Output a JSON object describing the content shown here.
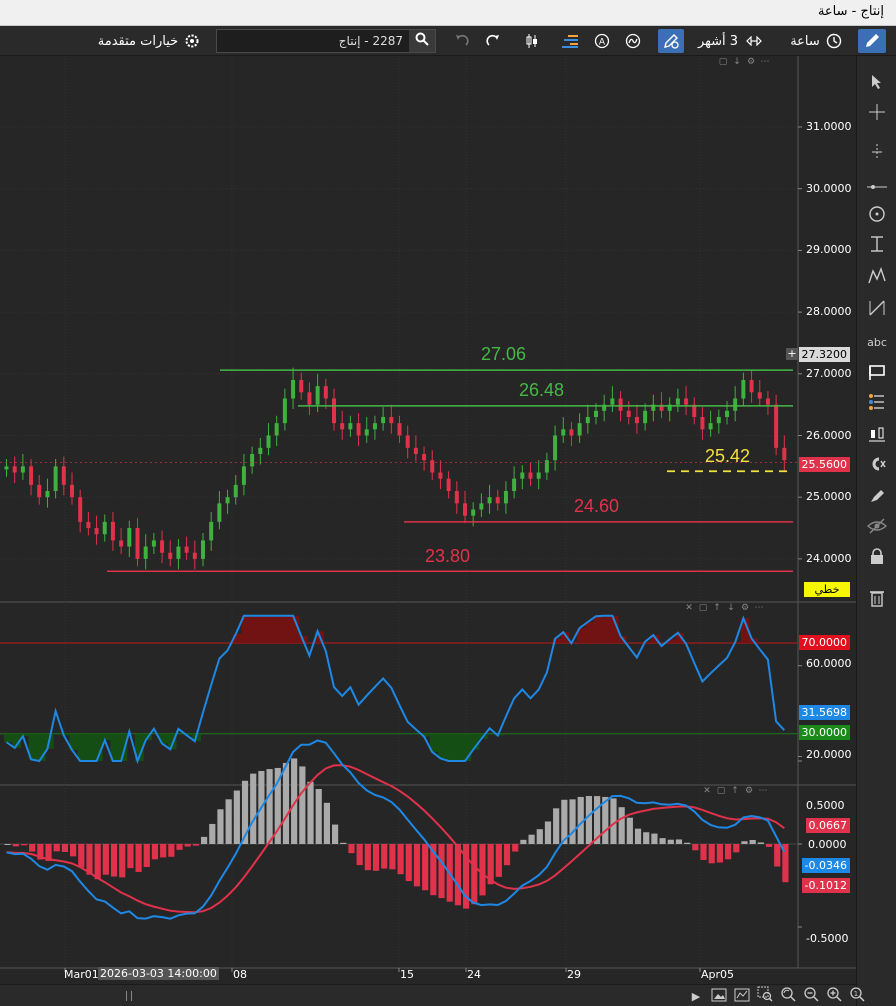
{
  "window": {
    "title": "إنتاج - ساعة"
  },
  "toolbar": {
    "timeframe_label": "ساعة",
    "range_label": "3 أشهر",
    "search_value": "2287 - إنتاج",
    "advanced_label": "خيارات متقدمة"
  },
  "axis": {
    "price_ticks": [
      "31.0000",
      "30.0000",
      "29.0000",
      "28.0000",
      "27.0000",
      "26.0000",
      "25.0000",
      "24.0000"
    ],
    "rsi_ticks": [
      "60.0000",
      "20.0000"
    ],
    "macd_ticks": [
      "0.5000",
      "0.0000",
      "-0.5000"
    ],
    "date_ticks": [
      "Mar01",
      "08",
      "15",
      "24",
      "29",
      "Apr05"
    ],
    "cursor_date": "2026-03-03 14:00:00"
  },
  "price_badges": {
    "crosshair": "27.3200",
    "last": "25.5600",
    "line_type": "خطي"
  },
  "rsi_badges": {
    "upper": "70.0000",
    "value": "31.5698",
    "lower": "30.0000"
  },
  "macd_badges": {
    "a": "0.0667",
    "b": "-0.0346",
    "c": "-0.1012"
  },
  "levels": {
    "l1": "27.06",
    "l2": "26.48",
    "l3": "25.42",
    "l4": "24.60",
    "l5": "23.80"
  },
  "colors": {
    "bull": "#3fb13f",
    "bear": "#e0324b",
    "level_green": "#45b845",
    "level_red": "#e0324b",
    "level_yellow": "#f2e33c",
    "rsi": "#1e88e5",
    "macd_blue": "#1e88e5",
    "macd_red": "#e0324b"
  },
  "chart_data": {
    "type": "candlestick",
    "ylim": [
      23.5,
      31.5
    ],
    "support_resistance": [
      27.06,
      26.48,
      25.42,
      24.6,
      23.8
    ],
    "last_price": 25.56,
    "close_series": [
      25.5,
      25.4,
      25.5,
      25.2,
      25.0,
      25.1,
      25.5,
      25.2,
      25.0,
      24.6,
      24.5,
      24.4,
      24.6,
      24.3,
      24.2,
      24.5,
      24.0,
      24.2,
      24.3,
      24.1,
      24.0,
      24.2,
      24.1,
      24.0,
      24.3,
      24.6,
      24.9,
      25.0,
      25.2,
      25.5,
      25.7,
      25.8,
      26.0,
      26.2,
      26.6,
      26.9,
      26.7,
      26.5,
      26.8,
      26.6,
      26.2,
      26.1,
      26.2,
      26.0,
      26.1,
      26.2,
      26.3,
      26.2,
      26.0,
      25.8,
      25.7,
      25.6,
      25.4,
      25.3,
      25.1,
      24.9,
      24.7,
      24.8,
      24.9,
      25.0,
      24.9,
      25.1,
      25.3,
      25.4,
      25.3,
      25.4,
      25.6,
      26.0,
      26.1,
      26.0,
      26.2,
      26.3,
      26.4,
      26.5,
      26.6,
      26.4,
      26.3,
      26.2,
      26.4,
      26.5,
      26.4,
      26.5,
      26.6,
      26.5,
      26.3,
      26.1,
      26.2,
      26.3,
      26.4,
      26.6,
      26.9,
      26.7,
      26.6,
      26.5,
      25.8,
      25.6
    ],
    "rsi": {
      "upper": 70,
      "lower": 30,
      "value": 31.5698
    },
    "macd": {
      "ticks": [
        0.5,
        0,
        -0.5
      ]
    }
  }
}
